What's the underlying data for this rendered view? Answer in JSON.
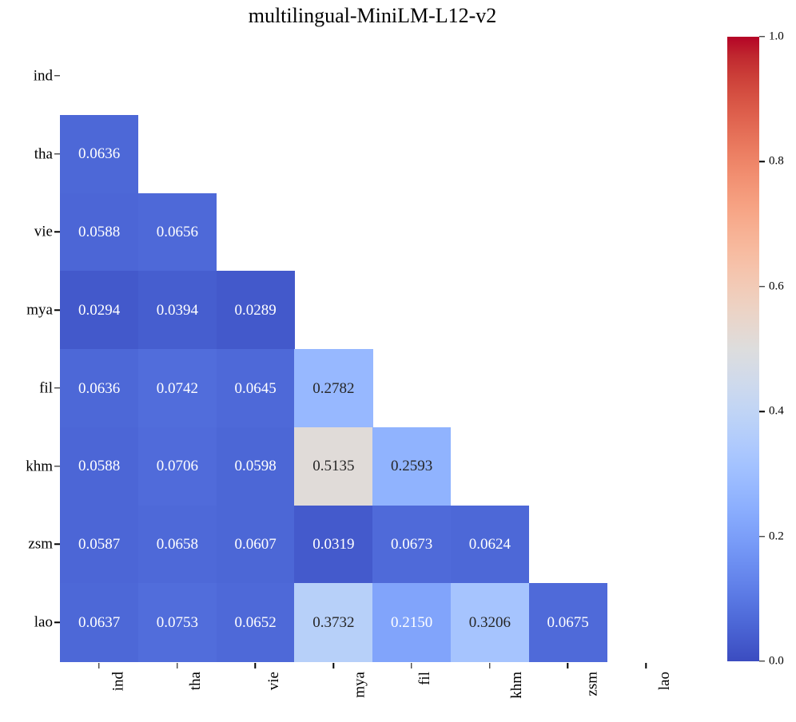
{
  "chart_data": {
    "type": "heatmap",
    "title": "multilingual-MiniLM-L12-v2",
    "categories": [
      "ind",
      "tha",
      "vie",
      "mya",
      "fil",
      "khm",
      "zsm",
      "lao"
    ],
    "x_ticklabels": [
      "ind",
      "tha",
      "vie",
      "mya",
      "fil",
      "khm",
      "zsm",
      "lao"
    ],
    "y_ticklabels": [
      "ind",
      "tha",
      "vie",
      "mya",
      "fil",
      "khm",
      "zsm",
      "lao"
    ],
    "mask": "upper-triangle-including-diagonal",
    "matrix": [
      [
        null,
        null,
        null,
        null,
        null,
        null,
        null,
        null
      ],
      [
        "0.0636",
        null,
        null,
        null,
        null,
        null,
        null,
        null
      ],
      [
        "0.0588",
        "0.0656",
        null,
        null,
        null,
        null,
        null,
        null
      ],
      [
        "0.0294",
        "0.0394",
        "0.0289",
        null,
        null,
        null,
        null,
        null
      ],
      [
        "0.0636",
        "0.0742",
        "0.0645",
        "0.2782",
        null,
        null,
        null,
        null
      ],
      [
        "0.0588",
        "0.0706",
        "0.0598",
        "0.5135",
        "0.2593",
        null,
        null,
        null
      ],
      [
        "0.0587",
        "0.0658",
        "0.0607",
        "0.0319",
        "0.0673",
        "0.0624",
        null,
        null
      ],
      [
        "0.0637",
        "0.0753",
        "0.0652",
        "0.3732",
        "0.2150",
        "0.3206",
        "0.0675",
        null
      ]
    ],
    "colormap": {
      "name": "coolwarm",
      "low": "#3b4cc0",
      "mid": "#dddcdc",
      "high": "#b40426"
    },
    "vmin": 0.0,
    "vmax": 1.0,
    "annotation_colors": {
      "on_dark_cell": "#ffffff",
      "on_light_cell": "#262626"
    },
    "colorbar": {
      "position": "right",
      "tick_labels": [
        "0.0",
        "0.2",
        "0.4",
        "0.6",
        "0.8",
        "1.0"
      ]
    },
    "legend": "none",
    "grid": false
  }
}
